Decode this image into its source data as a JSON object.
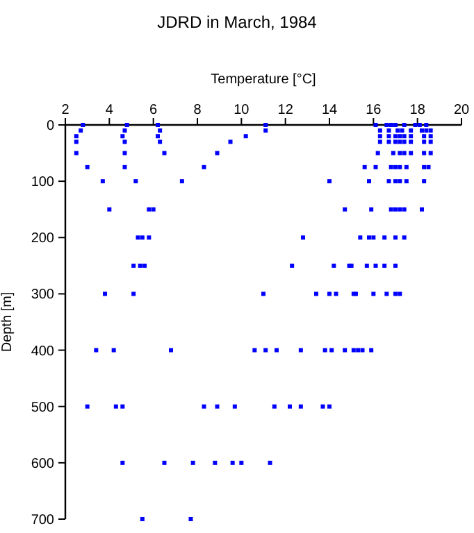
{
  "chart_data": {
    "type": "scatter",
    "title": "JDRD in March, 1984",
    "xlabel": "Temperature [°C]",
    "ylabel": "Depth [m]",
    "xlim": [
      2,
      20
    ],
    "xticks": [
      2,
      4,
      6,
      8,
      10,
      12,
      14,
      16,
      18,
      20
    ],
    "ylim": [
      700,
      0
    ],
    "yticks": [
      0,
      100,
      200,
      300,
      400,
      500,
      600,
      700
    ],
    "grid": false,
    "marker": "square",
    "series": [
      {
        "color": "#0000ff",
        "x": [
          2.8,
          4.8,
          6.2,
          11.1,
          16.1,
          16.6,
          16.8,
          17.0,
          17.4,
          17.9,
          18.1,
          18.4,
          2.7,
          4.7,
          6.3,
          11.1,
          16.3,
          16.7,
          17.1,
          17.3,
          17.7,
          18.2,
          18.4,
          18.6,
          2.5,
          4.6,
          6.2,
          10.2,
          16.3,
          16.7,
          17.0,
          17.2,
          17.4,
          17.7,
          18.3,
          18.6,
          2.5,
          4.7,
          6.3,
          9.5,
          16.3,
          16.7,
          17.0,
          17.2,
          17.4,
          17.7,
          18.3,
          18.6,
          2.5,
          4.7,
          6.5,
          8.9,
          16.2,
          16.9,
          17.2,
          17.4,
          17.7,
          18.3,
          18.6,
          3.0,
          4.7,
          8.3,
          15.6,
          16.1,
          16.8,
          17.0,
          17.2,
          17.5,
          18.3,
          18.5,
          3.7,
          5.2,
          7.3,
          14.0,
          15.8,
          16.7,
          17.0,
          17.2,
          17.5,
          18.3,
          4.0,
          5.8,
          6.0,
          14.7,
          15.9,
          16.8,
          17.0,
          17.2,
          17.4,
          18.2,
          5.3,
          5.5,
          5.8,
          12.8,
          15.4,
          15.8,
          16.0,
          16.5,
          17.0,
          17.4,
          5.1,
          5.4,
          5.6,
          12.3,
          14.2,
          14.9,
          15.0,
          15.7,
          16.1,
          16.5,
          17.0,
          3.8,
          5.1,
          11.0,
          13.4,
          14.0,
          14.3,
          15.1,
          15.2,
          16.0,
          16.6,
          17.0,
          17.2,
          3.4,
          4.2,
          6.8,
          10.6,
          11.1,
          11.6,
          12.7,
          13.8,
          14.1,
          14.7,
          15.1,
          15.3,
          15.5,
          15.9,
          3.0,
          4.3,
          4.6,
          8.3,
          8.9,
          9.7,
          11.5,
          12.2,
          12.7,
          13.7,
          14.0,
          4.6,
          6.5,
          7.8,
          8.8,
          9.6,
          10.0,
          11.3,
          5.5,
          7.7
        ],
        "values": [
          0,
          0,
          0,
          0,
          0,
          0,
          0,
          0,
          0,
          0,
          0,
          0,
          10,
          10,
          10,
          10,
          10,
          10,
          10,
          10,
          10,
          10,
          10,
          10,
          20,
          20,
          20,
          20,
          20,
          20,
          20,
          20,
          20,
          20,
          20,
          20,
          30,
          30,
          30,
          30,
          30,
          30,
          30,
          30,
          30,
          30,
          30,
          30,
          50,
          50,
          50,
          50,
          50,
          50,
          50,
          50,
          50,
          50,
          50,
          75,
          75,
          75,
          75,
          75,
          75,
          75,
          75,
          75,
          75,
          75,
          100,
          100,
          100,
          100,
          100,
          100,
          100,
          100,
          100,
          100,
          150,
          150,
          150,
          150,
          150,
          150,
          150,
          150,
          150,
          150,
          200,
          200,
          200,
          200,
          200,
          200,
          200,
          200,
          200,
          200,
          250,
          250,
          250,
          250,
          250,
          250,
          250,
          250,
          250,
          250,
          250,
          300,
          300,
          300,
          300,
          300,
          300,
          300,
          300,
          300,
          300,
          300,
          300,
          400,
          400,
          400,
          400,
          400,
          400,
          400,
          400,
          400,
          400,
          400,
          400,
          400,
          400,
          500,
          500,
          500,
          500,
          500,
          500,
          500,
          500,
          500,
          500,
          500,
          600,
          600,
          600,
          600,
          600,
          600,
          600,
          700,
          700
        ]
      }
    ]
  }
}
